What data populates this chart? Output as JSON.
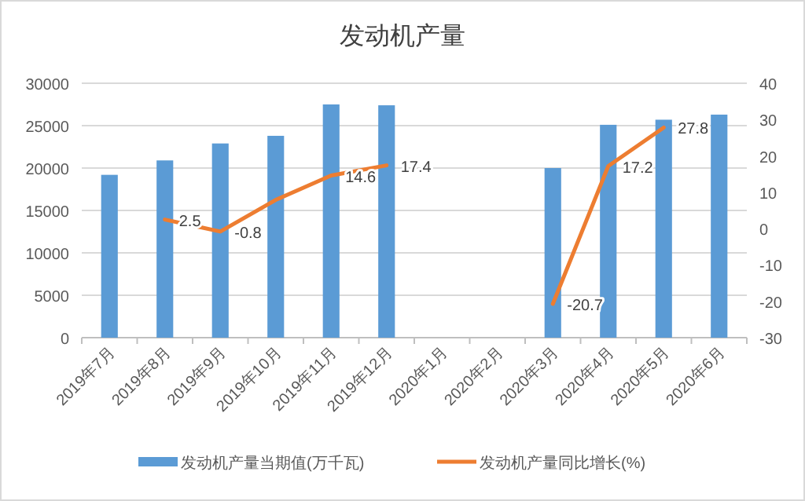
{
  "chart_data": {
    "type": "bar",
    "title": "发动机产量",
    "categories": [
      "2019年7月",
      "2019年8月",
      "2019年9月",
      "2019年10月",
      "2019年11月",
      "2019年12月",
      "2020年1月",
      "2020年2月",
      "2020年3月",
      "2020年4月",
      "2020年5月",
      "2020年6月"
    ],
    "series": [
      {
        "name": "发动机产量当期值(万千瓦)",
        "color": "#5b9bd5",
        "values": [
          19200,
          20900,
          22900,
          23800,
          27500,
          27400,
          null,
          null,
          20000,
          25100,
          25700,
          26300
        ]
      },
      {
        "name": "发动机产量同比增长(%)",
        "type": "line",
        "axis": "y2",
        "color": "#ed7d31",
        "values": [
          null,
          2.5,
          -0.8,
          7.9,
          14.6,
          17.4,
          null,
          null,
          -20.7,
          17.2,
          27.8,
          null
        ],
        "value_labels": [
          null,
          "2.5",
          "-0.8",
          null,
          "14.6",
          "17.4",
          null,
          null,
          "-20.7",
          "17.2",
          "27.8",
          null
        ]
      }
    ],
    "ylim": [
      0,
      30000
    ],
    "yticks": [
      0,
      5000,
      10000,
      15000,
      20000,
      25000,
      30000
    ],
    "y2lim": [
      -30,
      40
    ],
    "y2ticks": [
      -30,
      -20,
      -10,
      0,
      10,
      20,
      30,
      40
    ],
    "grid": "y",
    "legend": "bottom",
    "line_style": "solid",
    "marker": "none"
  }
}
